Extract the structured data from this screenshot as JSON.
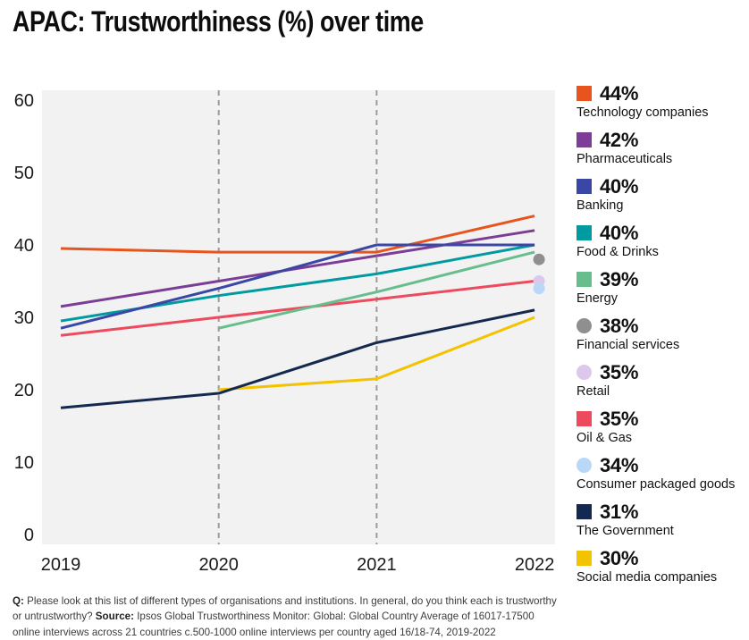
{
  "page": {
    "title": "APAC: Trustworthiness (%) over time"
  },
  "chart_data": {
    "type": "line",
    "title": "APAC: Trustworthiness (%) over time",
    "xlabel": "",
    "ylabel": "Trustworthiness (%)",
    "x": [
      "2019",
      "2020",
      "2021",
      "2022"
    ],
    "ylim": [
      0,
      60
    ],
    "yticks": [
      0,
      10,
      20,
      30,
      40,
      50,
      60
    ],
    "grid": false,
    "dashed_vlines_at_x": [
      "2020",
      "2021"
    ],
    "plot_bg": "#F2F2F2",
    "dashed_line_color": "#9B9B9B",
    "legend_position": "right",
    "series": [
      {
        "name": "Technology companies",
        "legend_pct": "44%",
        "color": "#E8541E",
        "values": [
          39.5,
          39,
          39,
          44
        ],
        "dot_only": false,
        "z": 5
      },
      {
        "name": "Pharmaceuticals",
        "legend_pct": "42%",
        "color": "#7B3D96",
        "values": [
          31.5,
          35,
          38.5,
          42
        ],
        "dot_only": false,
        "z": 4
      },
      {
        "name": "Banking",
        "legend_pct": "40%",
        "color": "#3A47A5",
        "values": [
          28.5,
          34,
          40,
          40
        ],
        "dot_only": false,
        "z": 8
      },
      {
        "name": "Food & Drinks",
        "legend_pct": "40%",
        "color": "#009BA0",
        "values": [
          29.5,
          33,
          36,
          40
        ],
        "dot_only": false,
        "z": 3
      },
      {
        "name": "Energy",
        "legend_pct": "39%",
        "color": "#67BE8C",
        "values": [
          null,
          28.5,
          33.5,
          39
        ],
        "dot_only": false,
        "z": 6
      },
      {
        "name": "Financial services",
        "legend_pct": "38%",
        "color": "#8F8F8F",
        "values": [
          null,
          null,
          null,
          38
        ],
        "dot_only": true,
        "z": 9
      },
      {
        "name": "Retail",
        "legend_pct": "35%",
        "color": "#DDC7EB",
        "values": [
          null,
          null,
          null,
          35
        ],
        "dot_only": true,
        "z": 9
      },
      {
        "name": "Oil & Gas",
        "legend_pct": "35%",
        "color": "#EE4A5E",
        "values": [
          27.5,
          30,
          32.5,
          35
        ],
        "dot_only": false,
        "z": 1
      },
      {
        "name": "Consumer packaged goods",
        "legend_pct": "34%",
        "color": "#B9D8F8",
        "values": [
          null,
          null,
          null,
          34
        ],
        "dot_only": true,
        "z": 9
      },
      {
        "name": "The Government",
        "legend_pct": "31%",
        "color": "#152950",
        "values": [
          17.5,
          19.5,
          26.5,
          31
        ],
        "dot_only": false,
        "z": 7
      },
      {
        "name": "Social media companies",
        "legend_pct": "30%",
        "color": "#F3C300",
        "values": [
          null,
          20,
          21.5,
          30
        ],
        "dot_only": false,
        "z": 2
      }
    ]
  },
  "footer": {
    "q_label": "Q:",
    "q_text": " Please look at this list of different types of organisations and institutions. In general, do you think each is trustworthy or untrustworthy? ",
    "source_label": "Source:",
    "source_text": " Ipsos Global Trustworthiness Monitor: Global: Global Country Average of 16017-17500 online interviews across 21 countries c.500-1000 online interviews per country aged 16/18-74, 2019-2022"
  }
}
